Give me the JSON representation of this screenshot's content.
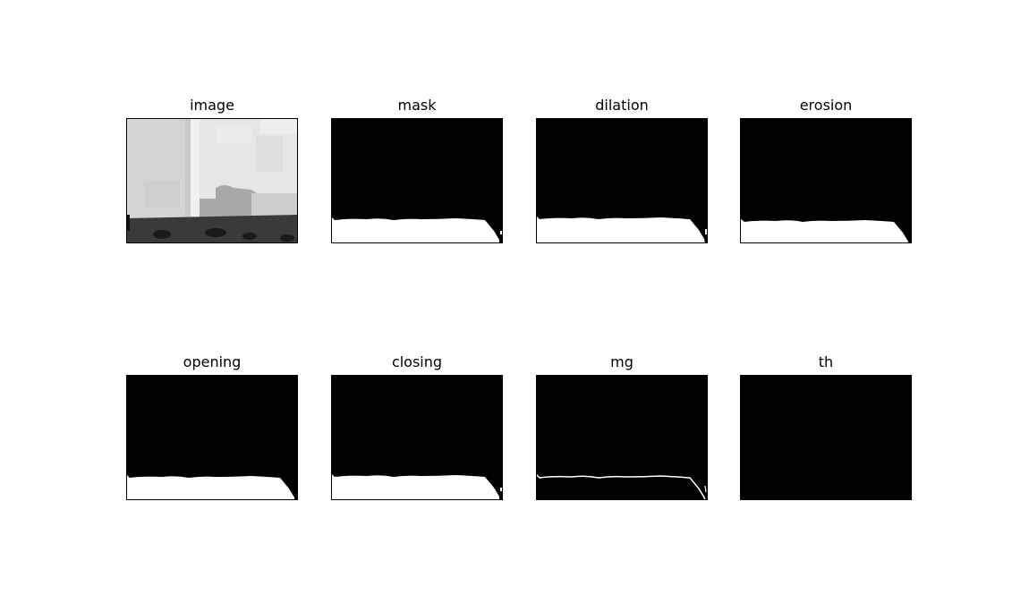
{
  "figure": {
    "panels": [
      {
        "key": "image",
        "title": "image"
      },
      {
        "key": "mask",
        "title": "mask"
      },
      {
        "key": "dilation",
        "title": "dilation"
      },
      {
        "key": "erosion",
        "title": "erosion"
      },
      {
        "key": "opening",
        "title": "opening"
      },
      {
        "key": "closing",
        "title": "closing"
      },
      {
        "key": "mg",
        "title": "mg"
      },
      {
        "key": "th",
        "title": "th"
      }
    ]
  }
}
